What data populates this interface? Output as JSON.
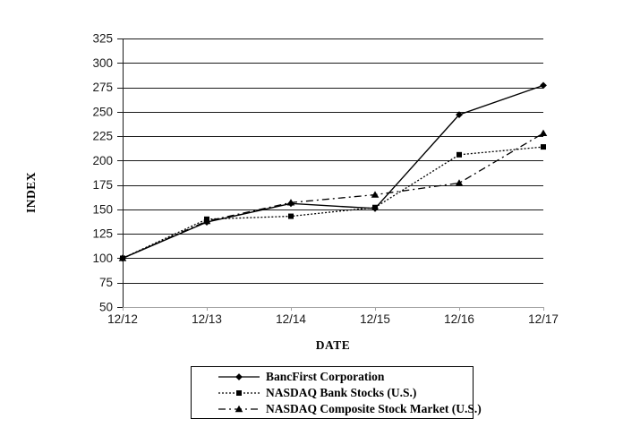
{
  "chart_data": {
    "type": "line",
    "title": "",
    "xlabel": "DATE",
    "ylabel": "INDEX",
    "x_categories": [
      "12/12",
      "12/13",
      "12/14",
      "12/15",
      "12/16",
      "12/17"
    ],
    "ylim": [
      50,
      325
    ],
    "ytick_step": 25,
    "yticks": [
      50,
      75,
      100,
      125,
      150,
      175,
      200,
      225,
      250,
      275,
      300,
      325
    ],
    "grid": "horizontal",
    "legend_position": "bottom-center",
    "legend_border": true,
    "colors": {
      "series_color": "#000000",
      "gridline_color": "#1a1a1a",
      "x_axis_color": "#a3a3a3",
      "y_axis_color": "#1a1a1a",
      "tick_text_color": "#1a1a1a",
      "background": "#ffffff"
    },
    "series": [
      {
        "name": "BancFirst Corporation",
        "line_style": "solid",
        "marker": "diamond",
        "color": "#000000",
        "values": [
          100,
          137,
          156,
          151,
          247,
          277
        ]
      },
      {
        "name": "NASDAQ Bank Stocks (U.S.)",
        "line_style": "dotted",
        "marker": "square",
        "color": "#000000",
        "values": [
          100,
          140,
          143,
          152,
          206,
          214
        ]
      },
      {
        "name": "NASDAQ Composite Stock Market (U.S.)",
        "line_style": "dash-dot",
        "marker": "triangle",
        "color": "#000000",
        "values": [
          100,
          138,
          157,
          165,
          177,
          228
        ]
      }
    ]
  }
}
